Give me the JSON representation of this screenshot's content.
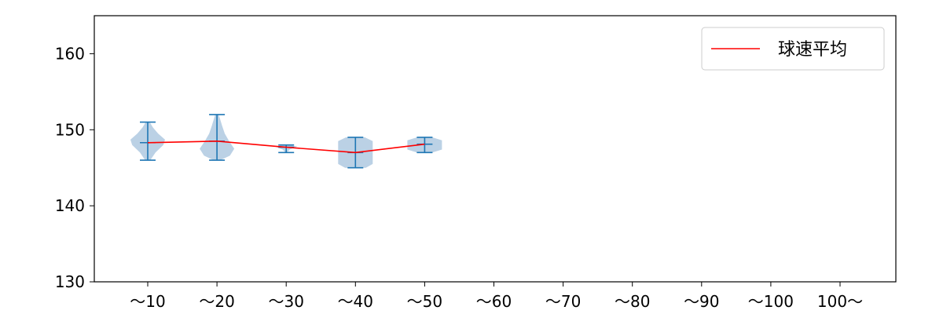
{
  "chart_data": {
    "type": "violin",
    "categories": [
      "～10",
      "～20",
      "～30",
      "～40",
      "～50",
      "～60",
      "～70",
      "～80",
      "～90",
      "～100",
      "100～"
    ],
    "ylim": [
      130,
      165
    ],
    "yticks": [
      130,
      140,
      150,
      160
    ],
    "grid": false,
    "legend": {
      "position": "top-right",
      "entries": [
        {
          "label": "球速平均",
          "color": "#ff0000"
        }
      ]
    },
    "colors": {
      "violin_fill": "#b7cfe4",
      "whisker": "#1f77b4",
      "mean_line": "#ff0000"
    },
    "series": [
      {
        "name": "球速平均",
        "values": [
          148.3,
          148.5,
          147.7,
          147.0,
          148.1,
          null,
          null,
          null,
          null,
          null,
          null
        ]
      }
    ],
    "distributions": [
      {
        "category": "～10",
        "min": 146,
        "max": 151,
        "mean": 148.3,
        "profile": [
          [
            146,
            0.15
          ],
          [
            147,
            0.45
          ],
          [
            148,
            0.9
          ],
          [
            148.7,
            1.0
          ],
          [
            149.5,
            0.6
          ],
          [
            150.3,
            0.3
          ],
          [
            151,
            0.12
          ]
        ]
      },
      {
        "category": "～20",
        "min": 146,
        "max": 152,
        "mean": 148.5,
        "profile": [
          [
            146,
            0.2
          ],
          [
            146.6,
            0.75
          ],
          [
            147.5,
            1.0
          ],
          [
            148.5,
            0.7
          ],
          [
            149.5,
            0.45
          ],
          [
            150.5,
            0.3
          ],
          [
            152,
            0.1
          ]
        ]
      },
      {
        "category": "～30",
        "min": 147,
        "max": 148,
        "mean": 147.7,
        "profile": [
          [
            147,
            0.05
          ],
          [
            147.4,
            0.2
          ],
          [
            147.8,
            0.65
          ],
          [
            148,
            0.15
          ]
        ]
      },
      {
        "category": "～40",
        "min": 145,
        "max": 149,
        "mean": 147.0,
        "profile": [
          [
            145,
            0.6
          ],
          [
            145.5,
            1.0
          ],
          [
            146.5,
            1.0
          ],
          [
            147.5,
            1.0
          ],
          [
            148.5,
            1.0
          ],
          [
            149,
            0.55
          ]
        ]
      },
      {
        "category": "～50",
        "min": 147,
        "max": 149,
        "mean": 148.1,
        "profile": [
          [
            147,
            0.45
          ],
          [
            147.4,
            1.0
          ],
          [
            148.6,
            1.0
          ],
          [
            149,
            0.45
          ]
        ]
      }
    ]
  }
}
